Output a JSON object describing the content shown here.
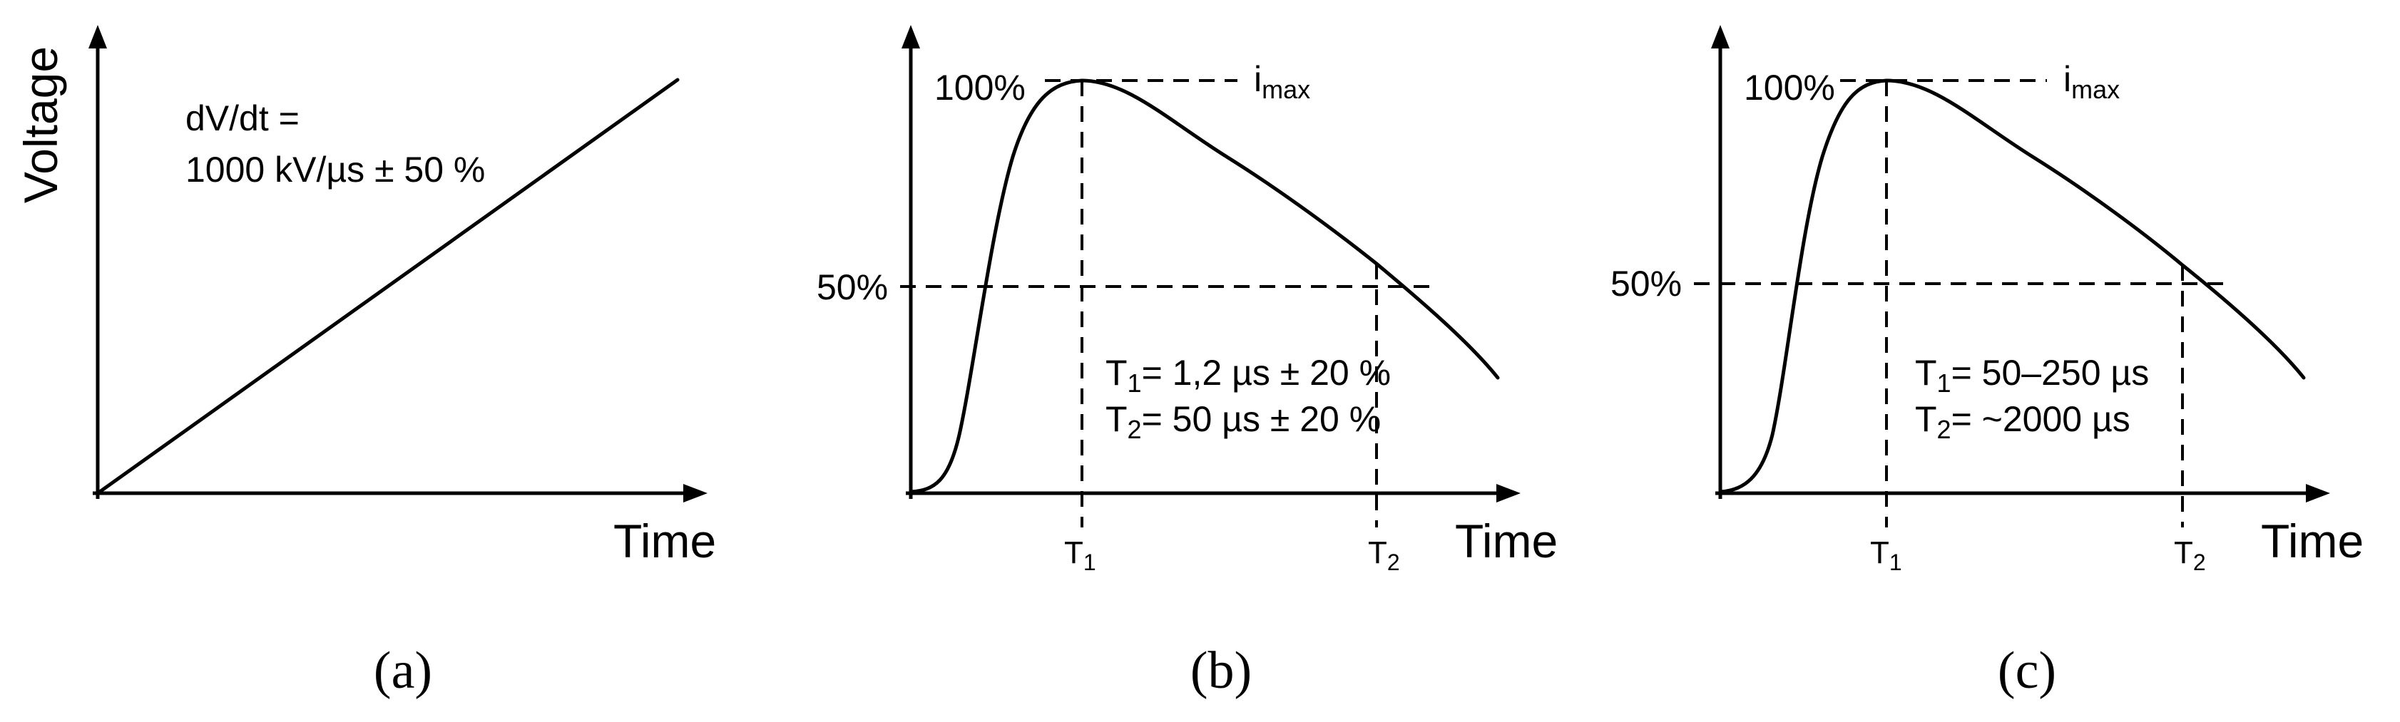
{
  "chart_data": [
    {
      "type": "line",
      "panel_label": "(a)",
      "ylabel": "Voltage",
      "xlabel": "Time",
      "series": [
        {
          "x": [
            0,
            1
          ],
          "y": [
            0,
            1
          ]
        }
      ],
      "annotation_lines": [
        "dV/dt =",
        "1000 kV/µs ± 50 %"
      ]
    },
    {
      "type": "line",
      "panel_label": "(b)",
      "xlabel": "Time",
      "levels": {
        "peak": "100%",
        "half": "50%",
        "peak_name": "i",
        "peak_sub": "max"
      },
      "x_ticks": [
        {
          "main": "T",
          "sub": "1"
        },
        {
          "main": "T",
          "sub": "2"
        }
      ],
      "annotation_lines": [
        {
          "main": "T",
          "sub": "1",
          "rest": "= 1,2 µs ± 20 %"
        },
        {
          "main": "T",
          "sub": "2",
          "rest": "= 50 µs ± 20 %"
        }
      ]
    },
    {
      "type": "line",
      "panel_label": "(c)",
      "xlabel": "Time",
      "levels": {
        "peak": "100%",
        "half": "50%",
        "peak_name": "i",
        "peak_sub": "max"
      },
      "x_ticks": [
        {
          "main": "T",
          "sub": "1"
        },
        {
          "main": "T",
          "sub": "2"
        }
      ],
      "annotation_lines": [
        {
          "main": "T",
          "sub": "1",
          "rest": "= 50–250 µs"
        },
        {
          "main": "T",
          "sub": "2",
          "rest": "= ~2000 µs"
        }
      ]
    }
  ]
}
